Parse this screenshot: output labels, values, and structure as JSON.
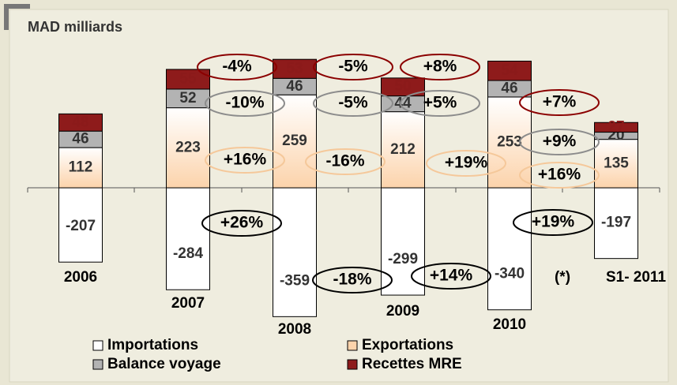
{
  "chart_data": {
    "type": "bar",
    "stacked": true,
    "title": "MAD milliards",
    "categories": [
      "2006",
      "2007",
      "2008",
      "2009",
      "2010",
      "S1- 2011"
    ],
    "series": [
      {
        "name": "Importations",
        "color": "#ffffff",
        "values": [
          -207,
          -284,
          -359,
          -299,
          -340,
          -197
        ]
      },
      {
        "name": "Exportations",
        "color": "#fcd3ab",
        "values": [
          112,
          223,
          259,
          212,
          253,
          135
        ]
      },
      {
        "name": "Balance voyage",
        "color": "#b3b3b3",
        "values": [
          46,
          52,
          46,
          44,
          46,
          20
        ]
      },
      {
        "name": "Recettes MRE",
        "color": "#8e1b1b",
        "values": [
          48,
          55,
          53,
          50,
          54,
          27
        ]
      }
    ],
    "ylim": [
      -400,
      420
    ],
    "note": "(*)",
    "annotations": [
      {
        "text": "-4%",
        "color": "#8b0000"
      },
      {
        "text": "-5%",
        "color": "#8b0000"
      },
      {
        "text": "+8%",
        "color": "#8b0000"
      },
      {
        "text": "-10%",
        "color": "#8c8c8c"
      },
      {
        "text": "-5%",
        "color": "#8c8c8c"
      },
      {
        "text": "+5%",
        "color": "#8c8c8c"
      },
      {
        "text": "+7%",
        "color": "#8b0000"
      },
      {
        "text": "+9%",
        "color": "#8c8c8c"
      },
      {
        "text": "+16%",
        "color": "#f5c89a"
      },
      {
        "text": "-16%",
        "color": "#f5c89a"
      },
      {
        "text": "+19%",
        "color": "#f5c89a"
      },
      {
        "text": "+16%",
        "color": "#f5c89a"
      },
      {
        "text": "+26%",
        "color": "#000000"
      },
      {
        "text": "+19%",
        "color": "#000000"
      },
      {
        "text": "-18%",
        "color": "#000000"
      },
      {
        "text": "+14%",
        "color": "#000000"
      }
    ]
  }
}
